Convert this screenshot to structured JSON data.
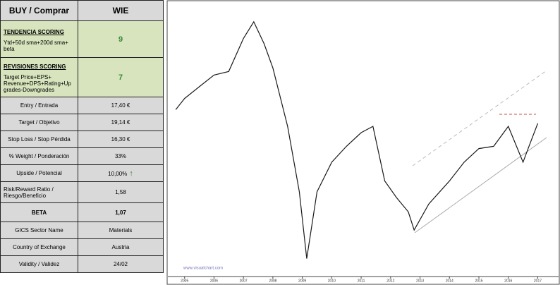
{
  "table": {
    "header": [
      "BUY / Comprar",
      "WIE"
    ],
    "scoring": [
      {
        "title": "TENDENCIA SCORING",
        "text": "Ytd+50d sma+200d  sma+ beta",
        "value": "9"
      },
      {
        "title": "REVISIONES SCORING",
        "text": "Target Price+EPS+ Revenue+DPS+Rating+Up grades-Downgrades",
        "value": "7"
      }
    ],
    "rows": [
      [
        "Entry / Entrada",
        "17,40 €"
      ],
      [
        "Target / Objetivo",
        "19,14 €"
      ],
      [
        "Stop Loss / Stop Pérdida",
        "16,30 €"
      ],
      [
        "% Weight / Ponderación",
        "33%"
      ],
      [
        "Upside / Potencial",
        "10,00%"
      ],
      [
        "Risk/Reward  Ratio / Riesgo/Beneficio",
        "1,58"
      ],
      [
        "BETA",
        "1,07"
      ],
      [
        "GICS Sector Name",
        "Materials"
      ],
      [
        "Country of Exchange",
        "Austria"
      ],
      [
        "Validity / Validez",
        "24/02"
      ]
    ]
  },
  "chart_data": {
    "type": "line",
    "x": [
      2004.7,
      2005,
      2005.5,
      2006,
      2006.5,
      2007,
      2007.35,
      2007.7,
      2008,
      2008.5,
      2008.9,
      2009.15,
      2009.5,
      2010,
      2010.5,
      2011,
      2011.4,
      2011.8,
      2012.2,
      2012.6,
      2012.8,
      2013.3,
      2014,
      2014.5,
      2015,
      2015.5,
      2016,
      2016.5,
      2016.7,
      2017
    ],
    "values": [
      20,
      22.3,
      25,
      28,
      29,
      40,
      47,
      38,
      30,
      17,
      9,
      4.7,
      9,
      12,
      14,
      16,
      17,
      10,
      8.5,
      7.4,
      6.2,
      8,
      10,
      12,
      13.7,
      14,
      17,
      12,
      14,
      17.5
    ],
    "color": "#1a1a1a",
    "xlim": [
      2004.6,
      2017.3
    ],
    "xticks": [
      2005,
      2006,
      2007,
      2008,
      2009,
      2010,
      2011,
      2012,
      2013,
      2014,
      2015,
      2016,
      2017
    ],
    "ylim": [
      4,
      55
    ],
    "log_scale": true,
    "watermark": "www.visualchart.com"
  }
}
